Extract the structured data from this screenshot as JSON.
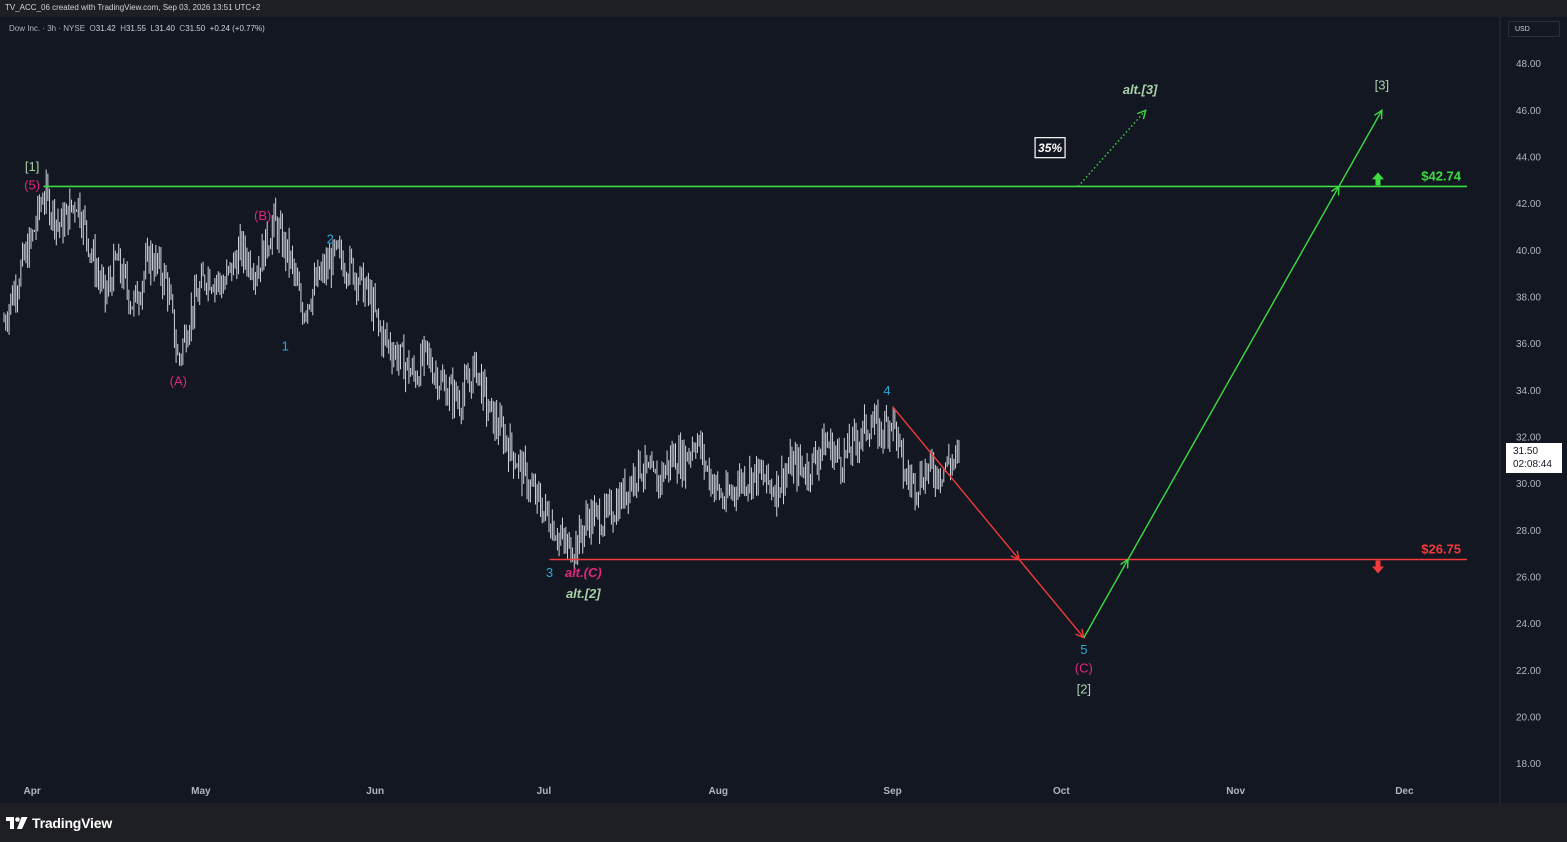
{
  "header": {
    "caption": "TV_ACC_06 created with TradingView.com, Sep 03, 2026 13:51 UTC+2"
  },
  "legend": {
    "symbol": "Dow Inc. · 3h · NYSE",
    "open_label": "O",
    "open": "31.42",
    "high_label": "H",
    "high": "31.55",
    "low_label": "L",
    "low": "31.40",
    "close_label": "C",
    "close": "31.50",
    "change": "+0.24 (+0.77%)"
  },
  "price_axis": {
    "currency": "USD",
    "current_price": "31.50",
    "countdown": "02:08:44"
  },
  "footer": {
    "brand": "TradingView"
  },
  "colors": {
    "background": "#131722",
    "candle": "#d1d4dc",
    "green": "#3ddc42",
    "red": "#f23a3a",
    "wave_pink": "#e0267e",
    "wave_cyan": "#28a9d6",
    "wave_sage": "#a8d1a6"
  },
  "chart_data": {
    "type": "line",
    "series_style": "candlestick",
    "y_range": [
      17,
      50
    ],
    "y_ticks": [
      "48.00",
      "46.00",
      "44.00",
      "42.00",
      "40.00",
      "38.00",
      "36.00",
      "34.00",
      "32.00",
      "30.00",
      "28.00",
      "26.00",
      "24.00",
      "22.00",
      "20.00",
      "18.00"
    ],
    "x_range": [
      "2026-03-27",
      "2026-12-18"
    ],
    "x_ticks": [
      {
        "label": "Apr",
        "date": "2026-04-01"
      },
      {
        "label": "May",
        "date": "2026-05-01"
      },
      {
        "label": "Jun",
        "date": "2026-06-01"
      },
      {
        "label": "Jul",
        "date": "2026-07-01"
      },
      {
        "label": "Aug",
        "date": "2026-08-01"
      },
      {
        "label": "Sep",
        "date": "2026-09-01"
      },
      {
        "label": "Oct",
        "date": "2026-10-01"
      },
      {
        "label": "Nov",
        "date": "2026-11-01"
      },
      {
        "label": "Dec",
        "date": "2026-12-01"
      }
    ],
    "price_path": [
      [
        "2026-03-27",
        37.0
      ],
      [
        "2026-03-30",
        39.2
      ],
      [
        "2026-04-01",
        40.5
      ],
      [
        "2026-04-03",
        42.5
      ],
      [
        "2026-04-06",
        41.0
      ],
      [
        "2026-04-09",
        42.2
      ],
      [
        "2026-04-12",
        39.5
      ],
      [
        "2026-04-14",
        38.0
      ],
      [
        "2026-04-16",
        39.6
      ],
      [
        "2026-04-19",
        37.6
      ],
      [
        "2026-04-22",
        39.8
      ],
      [
        "2026-04-25",
        38.6
      ],
      [
        "2026-04-27",
        35.2
      ],
      [
        "2026-04-29",
        37.2
      ],
      [
        "2026-05-02",
        39.0
      ],
      [
        "2026-05-05",
        38.5
      ],
      [
        "2026-05-08",
        40.0
      ],
      [
        "2026-05-11",
        39.2
      ],
      [
        "2026-05-14",
        41.2
      ],
      [
        "2026-05-17",
        39.5
      ],
      [
        "2026-05-19",
        37.4
      ],
      [
        "2026-05-22",
        38.8
      ],
      [
        "2026-05-25",
        39.8
      ],
      [
        "2026-05-28",
        39.2
      ],
      [
        "2026-05-31",
        38.0
      ],
      [
        "2026-06-02",
        36.4
      ],
      [
        "2026-06-05",
        35.5
      ],
      [
        "2026-06-08",
        34.6
      ],
      [
        "2026-06-10",
        35.5
      ],
      [
        "2026-06-13",
        34.2
      ],
      [
        "2026-06-16",
        33.6
      ],
      [
        "2026-06-19",
        35.0
      ],
      [
        "2026-06-21",
        33.2
      ],
      [
        "2026-06-24",
        32.0
      ],
      [
        "2026-06-27",
        30.6
      ],
      [
        "2026-06-30",
        29.2
      ],
      [
        "2026-07-02",
        28.5
      ],
      [
        "2026-07-05",
        27.2
      ],
      [
        "2026-07-07",
        27.5
      ],
      [
        "2026-07-09",
        28.6
      ],
      [
        "2026-07-12",
        28.5
      ],
      [
        "2026-07-15",
        29.5
      ],
      [
        "2026-07-18",
        30.8
      ],
      [
        "2026-07-21",
        30.0
      ],
      [
        "2026-07-24",
        31.2
      ],
      [
        "2026-07-26",
        31.0
      ],
      [
        "2026-07-28",
        32.0
      ],
      [
        "2026-07-30",
        30.6
      ],
      [
        "2026-08-02",
        29.2
      ],
      [
        "2026-08-05",
        30.2
      ],
      [
        "2026-08-08",
        30.4
      ],
      [
        "2026-08-11",
        29.8
      ],
      [
        "2026-08-14",
        30.8
      ],
      [
        "2026-08-17",
        30.6
      ],
      [
        "2026-08-20",
        31.8
      ],
      [
        "2026-08-23",
        31.0
      ],
      [
        "2026-08-26",
        32.0
      ],
      [
        "2026-08-28",
        32.6
      ],
      [
        "2026-08-30",
        32.2
      ],
      [
        "2026-09-01",
        32.9
      ],
      [
        "2026-09-03",
        30.4
      ],
      [
        "2026-09-05",
        30.0
      ],
      [
        "2026-09-07",
        30.6
      ],
      [
        "2026-09-09",
        30.5
      ],
      [
        "2026-09-11",
        30.9
      ],
      [
        "2026-09-13",
        31.0
      ]
    ],
    "levels": [
      {
        "label": "$42.74",
        "value": 42.74,
        "color": "#3ddc42",
        "from": "2026-04-03"
      },
      {
        "label": "$26.75",
        "value": 26.75,
        "color": "#f23a3a",
        "from": "2026-07-02"
      }
    ],
    "projections": [
      {
        "points": [
          [
            "2026-09-01",
            33.3
          ],
          [
            "2026-10-05",
            23.4
          ]
        ],
        "color": "#f23a3a",
        "arrow_marks_at": [
          26.75
        ]
      },
      {
        "points": [
          [
            "2026-10-05",
            23.4
          ],
          [
            "2026-11-27",
            46.0
          ]
        ],
        "color": "#3ddc42",
        "arrow_marks_at": [
          26.75,
          42.74
        ]
      },
      {
        "points": [
          [
            "2026-10-04",
            42.74
          ],
          [
            "2026-10-16",
            46.0
          ]
        ],
        "color": "#3ddc42",
        "dotted": true
      }
    ],
    "wave_labels": [
      {
        "text": "[1]",
        "date": "2026-04-01",
        "price": 43.4,
        "color": "sage"
      },
      {
        "text": "(5)",
        "date": "2026-04-01",
        "price": 42.6,
        "color": "pink"
      },
      {
        "text": "(A)",
        "date": "2026-04-27",
        "price": 34.2,
        "color": "pink"
      },
      {
        "text": "(B)",
        "date": "2026-05-12",
        "price": 41.3,
        "color": "pink"
      },
      {
        "text": "1",
        "date": "2026-05-16",
        "price": 35.7,
        "color": "cyan"
      },
      {
        "text": "2",
        "date": "2026-05-24",
        "price": 40.3,
        "color": "cyan"
      },
      {
        "text": "3",
        "date": "2026-07-02",
        "price": 26.0,
        "color": "cyan"
      },
      {
        "text": "alt.(C)",
        "date": "2026-07-08",
        "price": 26.0,
        "color": "pink"
      },
      {
        "text": "alt.[2]",
        "date": "2026-07-08",
        "price": 25.1,
        "color": "sage"
      },
      {
        "text": "4",
        "date": "2026-08-31",
        "price": 33.8,
        "color": "cyan"
      },
      {
        "text": "5",
        "date": "2026-10-05",
        "price": 22.7,
        "color": "cyan"
      },
      {
        "text": "(C)",
        "date": "2026-10-05",
        "price": 21.9,
        "color": "pink"
      },
      {
        "text": "[2]",
        "date": "2026-10-05",
        "price": 21.0,
        "color": "sage"
      },
      {
        "text": "alt.[3]",
        "date": "2026-10-15",
        "price": 46.7,
        "color": "sage"
      },
      {
        "text": "[3]",
        "date": "2026-11-27",
        "price": 46.9,
        "color": "sage"
      }
    ],
    "probability_box": {
      "text": "35%",
      "date": "2026-09-29",
      "price": 44.4
    }
  }
}
